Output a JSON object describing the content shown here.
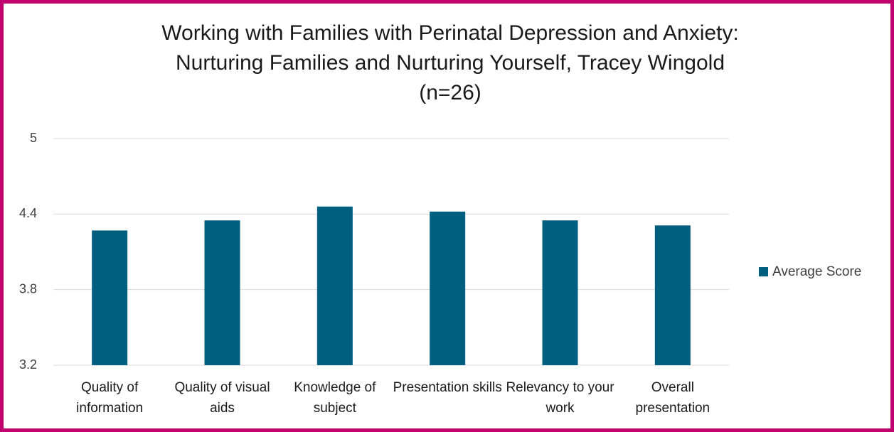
{
  "chart_data": {
    "type": "bar",
    "title": [
      "Working with Families with Perinatal Depression and Anxiety:",
      "Nurturing Families and Nurturing Yourself, Tracey Wingold",
      "(n=26)"
    ],
    "categories": [
      "Quality of information",
      "Quality of visual aids",
      "Knowledge of subject",
      "Presentation skills",
      "Relevancy to your work",
      "Overall presentation"
    ],
    "series": [
      {
        "name": "Average Score",
        "color": "#005f7f",
        "values": [
          4.27,
          4.35,
          4.46,
          4.42,
          4.35,
          4.31
        ]
      }
    ],
    "ylim": [
      3.2,
      5
    ],
    "yticks": [
      3.2,
      3.8,
      4.4,
      5
    ],
    "grid": true,
    "legend": "right"
  }
}
